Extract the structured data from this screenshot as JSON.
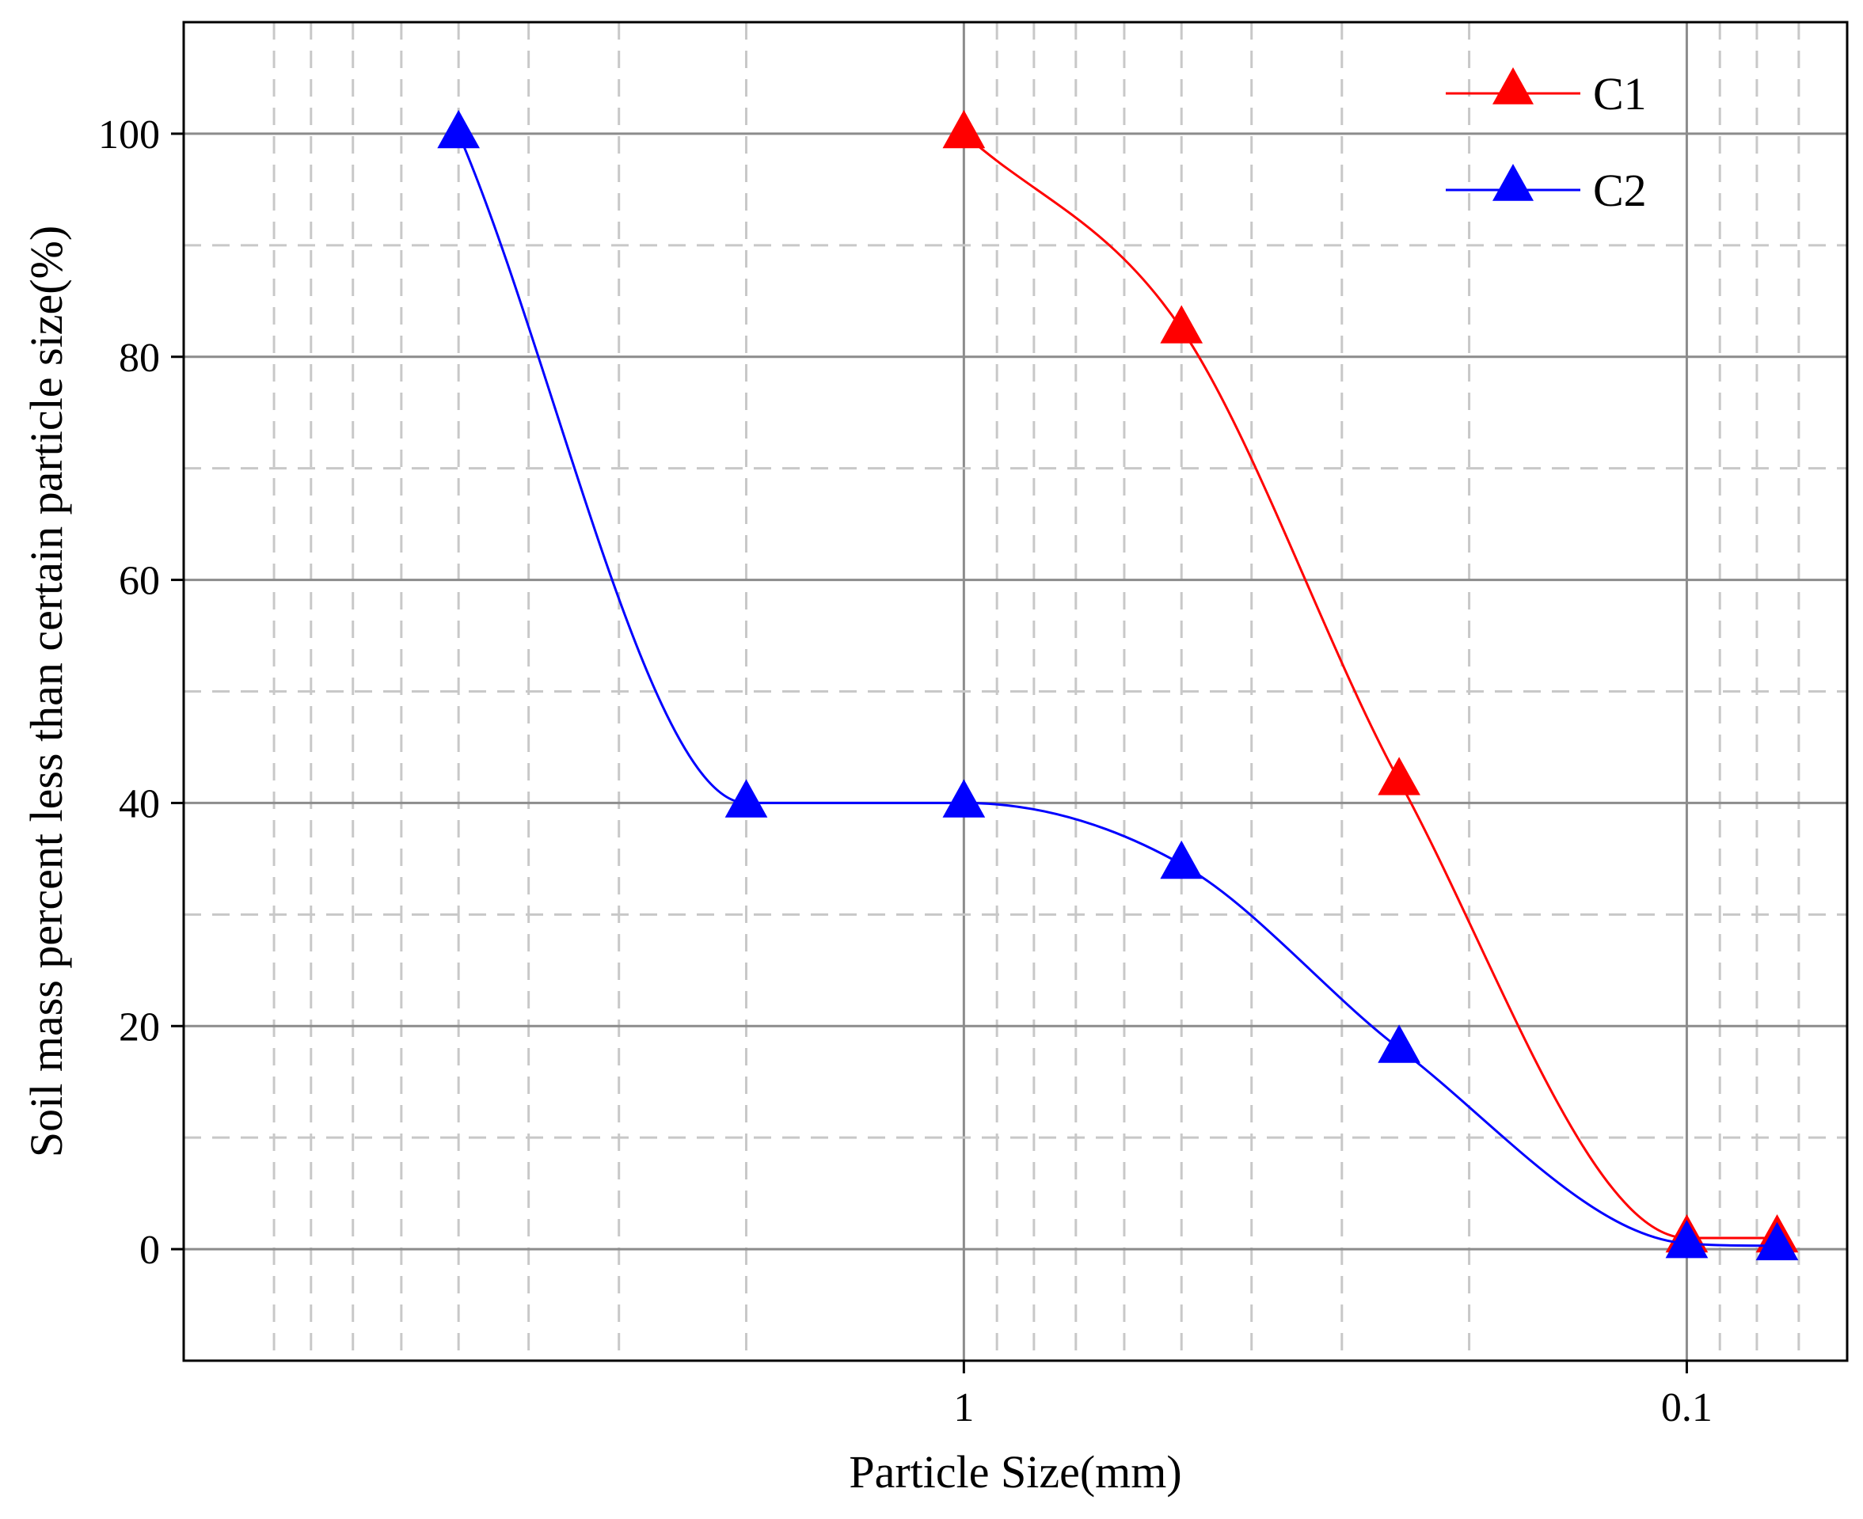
{
  "chart_data": {
    "type": "line",
    "title": "",
    "xlabel": "Particle Size(mm)",
    "ylabel": "Soil mass percent less than certain particle size(%)",
    "x_scale": "log",
    "x_reversed": true,
    "xlim": [
      12.0,
      0.06
    ],
    "ylim": [
      -10,
      110
    ],
    "x_ticks": [
      1,
      0.1
    ],
    "x_tick_labels": [
      "1",
      "0.1"
    ],
    "y_ticks": [
      0,
      20,
      40,
      60,
      80,
      100
    ],
    "y_tick_labels": [
      "0",
      "20",
      "40",
      "60",
      "80",
      "100"
    ],
    "grid": true,
    "legend_position": "top-right",
    "series": [
      {
        "name": "C1",
        "color": "#ff0000",
        "marker": "triangle",
        "x": [
          1,
          0.5,
          0.25,
          0.1,
          0.075
        ],
        "y": [
          100,
          82.5,
          42,
          1,
          1
        ]
      },
      {
        "name": "C2",
        "color": "#0000ff",
        "marker": "triangle",
        "x": [
          5,
          2,
          1,
          0.5,
          0.25,
          0.1,
          0.075
        ],
        "y": [
          100,
          40,
          40,
          34.5,
          18,
          0.5,
          0.3
        ]
      }
    ]
  }
}
